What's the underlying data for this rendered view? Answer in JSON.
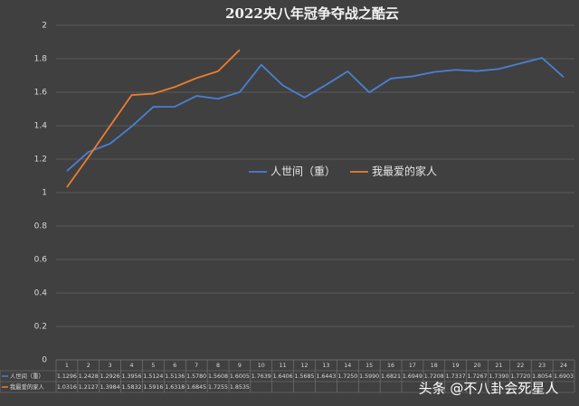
{
  "chart_data": {
    "type": "line",
    "title": "2022央八年冠争夺战之酷云",
    "categories": [
      1,
      2,
      3,
      4,
      5,
      6,
      7,
      8,
      9,
      10,
      11,
      12,
      13,
      14,
      15,
      16,
      17,
      18,
      19,
      20,
      21,
      22,
      23,
      24
    ],
    "series": [
      {
        "name": "人世间（重）",
        "color": "#4a7fd4",
        "values": [
          1.1296,
          1.2428,
          1.2926,
          1.3956,
          1.5124,
          1.5136,
          1.578,
          1.5608,
          1.6005,
          1.7639,
          1.6406,
          1.5685,
          1.6443,
          1.725,
          1.599,
          1.6821,
          1.6949,
          1.7208,
          1.7337,
          1.7267,
          1.739,
          1.772,
          1.8054,
          1.6903
        ],
        "value_labels": [
          "1.1296",
          "1.2428",
          "1.2926",
          "1.3956",
          "1.5124",
          "1.5136",
          "1.5780",
          "1.5608",
          "1.6005",
          "1.7639",
          "1.6406",
          "1.5685",
          "1.6443",
          "1.7250",
          "1.5990",
          "1.6821",
          "1.6949",
          "1.7208",
          "1.7337",
          "1.7267",
          "1.7390",
          "1.7720",
          "1.8054",
          "1.6903"
        ]
      },
      {
        "name": "我最爱的家人",
        "color": "#ed7d31",
        "values": [
          1.0316,
          1.2127,
          1.3984,
          1.5832,
          1.5916,
          1.6318,
          1.6845,
          1.7255,
          1.8535,
          null,
          null,
          null,
          null,
          null,
          null,
          null,
          null,
          null,
          null,
          null,
          null,
          null,
          null,
          null
        ],
        "value_labels": [
          "1.0316",
          "1.2127",
          "1.3984",
          "1.5832",
          "1.5916",
          "1.6318",
          "1.6845",
          "1.7255",
          "1.8535",
          null,
          null,
          null,
          null,
          null,
          null,
          null,
          null,
          null,
          null,
          null,
          null,
          null,
          null,
          null
        ]
      }
    ],
    "ylim": [
      0,
      2
    ],
    "yticks": [
      0,
      0.2,
      0.4,
      0.6,
      0.8,
      1,
      1.2,
      1.4,
      1.6,
      1.8,
      2
    ],
    "grid": true,
    "legend": "center",
    "watermark": "头条 @不八卦会死星人"
  }
}
